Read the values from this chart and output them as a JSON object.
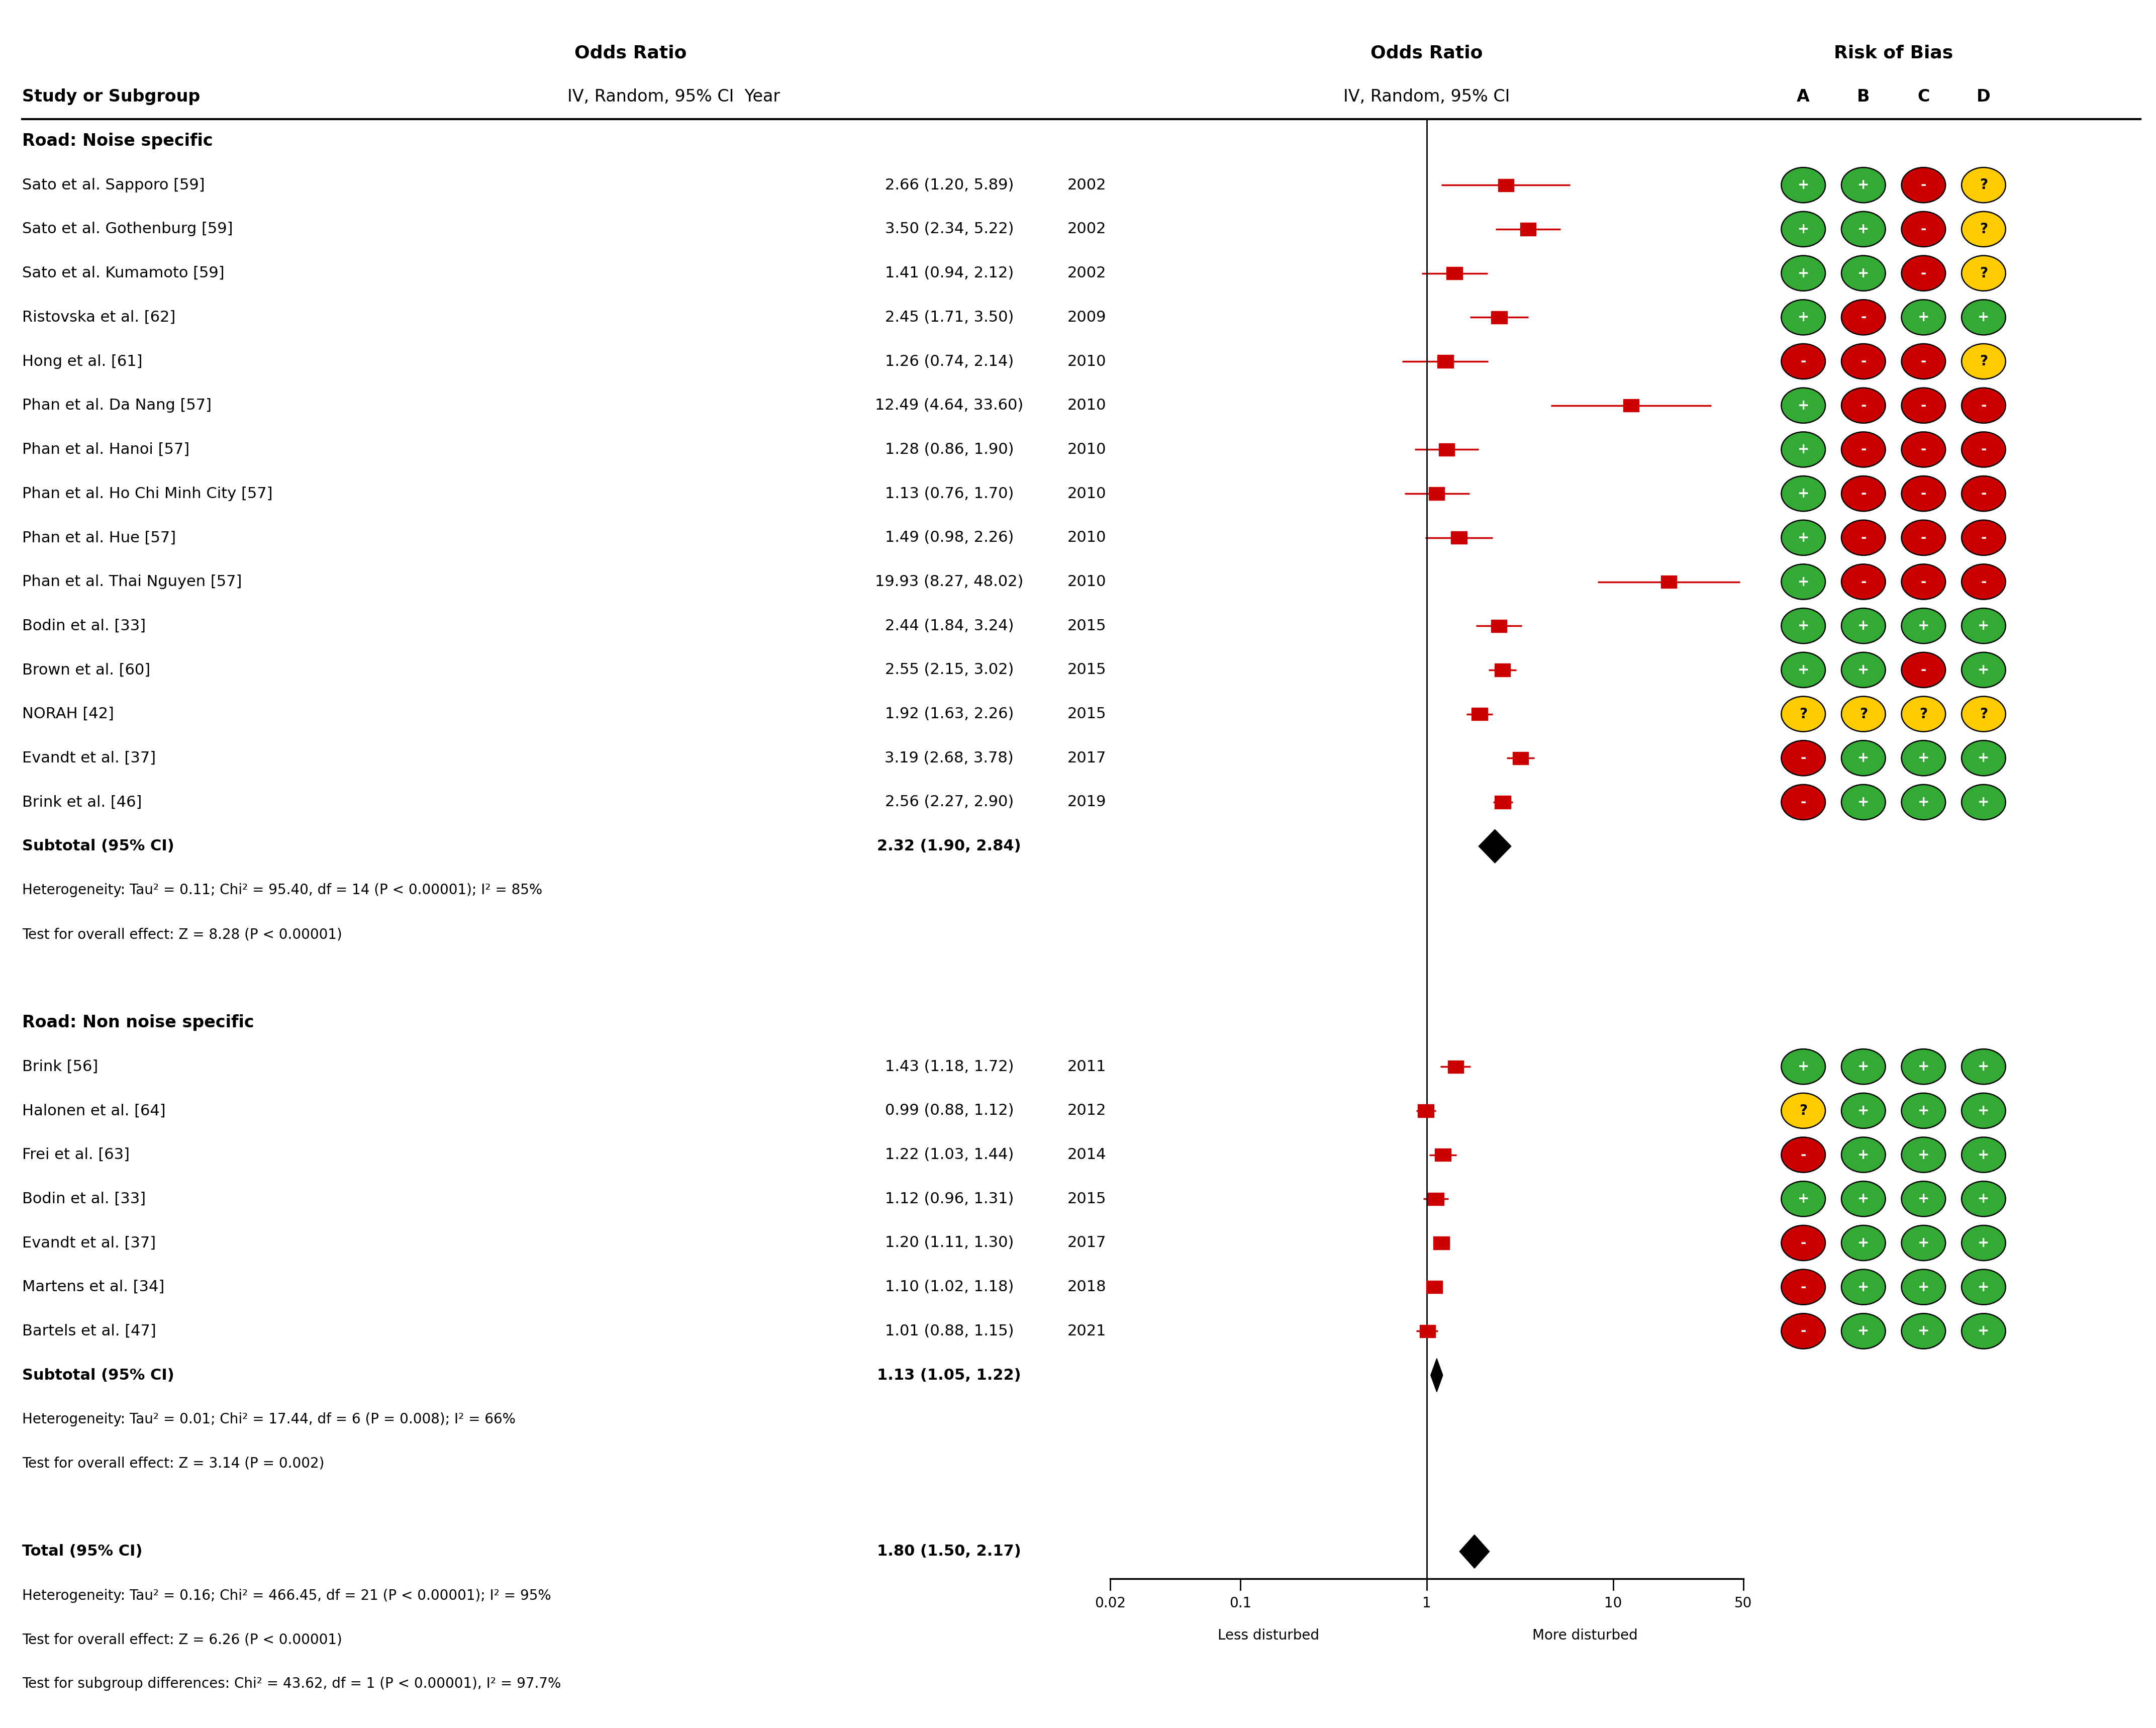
{
  "fig_width": 42.7,
  "fig_height": 34.18,
  "header_or": "Odds Ratio",
  "header_sub": "IV, Random, 95% CI",
  "header_year": "Year",
  "header_study": "Study or Subgroup",
  "header_or2": "Odds Ratio",
  "header_sub2": "IV, Random, 95% CI",
  "header_rob": "Risk of Bias",
  "rob_labels": [
    "A",
    "B",
    "C",
    "D"
  ],
  "group1_label": "Road: Noise specific",
  "group1_studies": [
    {
      "name": "Sato et al. Sapporo [59]",
      "or": 2.66,
      "lo": 1.2,
      "hi": 5.89,
      "year": "2002"
    },
    {
      "name": "Sato et al. Gothenburg [59]",
      "or": 3.5,
      "lo": 2.34,
      "hi": 5.22,
      "year": "2002"
    },
    {
      "name": "Sato et al. Kumamoto [59]",
      "or": 1.41,
      "lo": 0.94,
      "hi": 2.12,
      "year": "2002"
    },
    {
      "name": "Ristovska et al. [62]",
      "or": 2.45,
      "lo": 1.71,
      "hi": 3.5,
      "year": "2009"
    },
    {
      "name": "Hong et al. [61]",
      "or": 1.26,
      "lo": 0.74,
      "hi": 2.14,
      "year": "2010"
    },
    {
      "name": "Phan et al. Da Nang [57]",
      "or": 12.49,
      "lo": 4.64,
      "hi": 33.6,
      "year": "2010"
    },
    {
      "name": "Phan et al. Hanoi [57]",
      "or": 1.28,
      "lo": 0.86,
      "hi": 1.9,
      "year": "2010"
    },
    {
      "name": "Phan et al. Ho Chi Minh City [57]",
      "or": 1.13,
      "lo": 0.76,
      "hi": 1.7,
      "year": "2010"
    },
    {
      "name": "Phan et al. Hue [57]",
      "or": 1.49,
      "lo": 0.98,
      "hi": 2.26,
      "year": "2010"
    },
    {
      "name": "Phan et al. Thai Nguyen [57]",
      "or": 19.93,
      "lo": 8.27,
      "hi": 48.02,
      "year": "2010"
    },
    {
      "name": "Bodin et al. [33]",
      "or": 2.44,
      "lo": 1.84,
      "hi": 3.24,
      "year": "2015"
    },
    {
      "name": "Brown et al. [60]",
      "or": 2.55,
      "lo": 2.15,
      "hi": 3.02,
      "year": "2015"
    },
    {
      "name": "NORAH [42]",
      "or": 1.92,
      "lo": 1.63,
      "hi": 2.26,
      "year": "2015"
    },
    {
      "name": "Evandt et al. [37]",
      "or": 3.19,
      "lo": 2.68,
      "hi": 3.78,
      "year": "2017"
    },
    {
      "name": "Brink et al. [46]",
      "or": 2.56,
      "lo": 2.27,
      "hi": 2.9,
      "year": "2019"
    }
  ],
  "group1_subtotal": {
    "or": 2.32,
    "lo": 1.9,
    "hi": 2.84
  },
  "group1_het": "Heterogeneity: Tau² = 0.11; Chi² = 95.40, df = 14 (P < 0.00001); I² = 85%",
  "group1_eff": "Test for overall effect: Z = 8.28 (P < 0.00001)",
  "group2_label": "Road: Non noise specific",
  "group2_studies": [
    {
      "name": "Brink [56]",
      "or": 1.43,
      "lo": 1.18,
      "hi": 1.72,
      "year": "2011"
    },
    {
      "name": "Halonen et al. [64]",
      "or": 0.99,
      "lo": 0.88,
      "hi": 1.12,
      "year": "2012"
    },
    {
      "name": "Frei et al. [63]",
      "or": 1.22,
      "lo": 1.03,
      "hi": 1.44,
      "year": "2014"
    },
    {
      "name": "Bodin et al. [33]",
      "or": 1.12,
      "lo": 0.96,
      "hi": 1.31,
      "year": "2015"
    },
    {
      "name": "Evandt et al. [37]",
      "or": 1.2,
      "lo": 1.11,
      "hi": 1.3,
      "year": "2017"
    },
    {
      "name": "Martens et al. [34]",
      "or": 1.1,
      "lo": 1.02,
      "hi": 1.18,
      "year": "2018"
    },
    {
      "name": "Bartels et al. [47]",
      "or": 1.01,
      "lo": 0.88,
      "hi": 1.15,
      "year": "2021"
    }
  ],
  "group2_subtotal": {
    "or": 1.13,
    "lo": 1.05,
    "hi": 1.22
  },
  "group2_het": "Heterogeneity: Tau² = 0.01; Chi² = 17.44, df = 6 (P = 0.008); I² = 66%",
  "group2_eff": "Test for overall effect: Z = 3.14 (P = 0.002)",
  "total": {
    "or": 1.8,
    "lo": 1.5,
    "hi": 2.17
  },
  "total_het": "Heterogeneity: Tau² = 0.16; Chi² = 466.45, df = 21 (P < 0.00001); I² = 95%",
  "total_eff": "Test for overall effect: Z = 6.26 (P < 0.00001)",
  "total_subdiff": "Test for subgroup differences: Chi² = 43.62, df = 1 (P < 0.00001), I² = 97.7%",
  "xmin": 0.02,
  "xmax": 50,
  "xticks": [
    0.02,
    0.1,
    1,
    10,
    50
  ],
  "xticklabels": [
    "0.02",
    "0.1",
    "1",
    "10",
    "50"
  ],
  "xlabel_left": "Less disturbed",
  "xlabel_right": "More disturbed",
  "rob_group1": [
    [
      "+",
      "+",
      "-",
      "?"
    ],
    [
      "+",
      "+",
      "-",
      "?"
    ],
    [
      "+",
      "+",
      "-",
      "?"
    ],
    [
      "+",
      "-",
      "+",
      "+"
    ],
    [
      "-",
      "-",
      "-",
      "?"
    ],
    [
      "+",
      "-",
      "-",
      "-"
    ],
    [
      "+",
      "-",
      "-",
      "-"
    ],
    [
      "+",
      "-",
      "-",
      "-"
    ],
    [
      "+",
      "-",
      "-",
      "-"
    ],
    [
      "+",
      "-",
      "-",
      "-"
    ],
    [
      "+",
      "+",
      "+",
      "+"
    ],
    [
      "+",
      "+",
      "-",
      "+"
    ],
    [
      "?",
      "?",
      "?",
      "?"
    ],
    [
      "-",
      "+",
      "+",
      "+"
    ],
    [
      "-",
      "+",
      "+",
      "+"
    ]
  ],
  "rob_group2": [
    [
      "+",
      "+",
      "+",
      "+"
    ],
    [
      "?",
      "+",
      "+",
      "+"
    ],
    [
      "-",
      "+",
      "+",
      "+"
    ],
    [
      "+",
      "+",
      "+",
      "+"
    ],
    [
      "-",
      "+",
      "+",
      "+"
    ],
    [
      "-",
      "+",
      "+",
      "+"
    ],
    [
      "-",
      "+",
      "+",
      "+"
    ]
  ]
}
